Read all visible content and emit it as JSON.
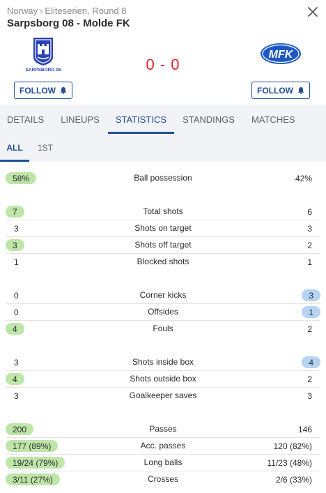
{
  "breadcrumb": {
    "country": "Norway",
    "separator": "›",
    "competition": "Eliteserien, Round 8"
  },
  "match": {
    "title": "Sarpsborg 08 - Molde FK",
    "score": "0 - 0"
  },
  "teams": {
    "home": {
      "logo_text": "SARPSBORG 08",
      "follow_label": "FOLLOW"
    },
    "away": {
      "logo_text": "MFK",
      "follow_label": "FOLLOW"
    }
  },
  "tabs": [
    "DETAILS",
    "LINEUPS",
    "STATISTICS",
    "STANDINGS",
    "MATCHES"
  ],
  "active_tab": "STATISTICS",
  "periods": [
    "ALL",
    "1ST"
  ],
  "active_period": "ALL",
  "colors": {
    "accent": "#1f4e98",
    "score": "#e8202a",
    "home_highlight": "#bfe6a9",
    "away_highlight": "#b6d4f2",
    "tab_bg": "#f2f3f6"
  },
  "icons": {
    "close": "close-icon",
    "bell": "bell-icon"
  },
  "stat_groups": [
    [
      {
        "label": "Ball possession",
        "home": "58%",
        "away": "42%",
        "highlight": "home"
      }
    ],
    [
      {
        "label": "Total shots",
        "home": "7",
        "away": "6",
        "highlight": "home"
      },
      {
        "label": "Shots on target",
        "home": "3",
        "away": "3",
        "highlight": "none"
      },
      {
        "label": "Shots off target",
        "home": "3",
        "away": "2",
        "highlight": "home"
      },
      {
        "label": "Blocked shots",
        "home": "1",
        "away": "1",
        "highlight": "none"
      }
    ],
    [
      {
        "label": "Corner kicks",
        "home": "0",
        "away": "3",
        "highlight": "away"
      },
      {
        "label": "Offsides",
        "home": "0",
        "away": "1",
        "highlight": "away"
      },
      {
        "label": "Fouls",
        "home": "4",
        "away": "2",
        "highlight": "home"
      }
    ],
    [
      {
        "label": "Shots inside box",
        "home": "3",
        "away": "4",
        "highlight": "away"
      },
      {
        "label": "Shots outside box",
        "home": "4",
        "away": "2",
        "highlight": "home"
      },
      {
        "label": "Goalkeeper saves",
        "home": "3",
        "away": "3",
        "highlight": "none"
      }
    ],
    [
      {
        "label": "Passes",
        "home": "200",
        "away": "146",
        "highlight": "home"
      },
      {
        "label": "Acc. passes",
        "home": "177 (89%)",
        "away": "120 (82%)",
        "highlight": "home"
      },
      {
        "label": "Long balls",
        "home": "19/24 (79%)",
        "away": "11/23 (48%)",
        "highlight": "home"
      },
      {
        "label": "Crosses",
        "home": "3/11 (27%)",
        "away": "2/6 (33%)",
        "highlight": "home"
      }
    ]
  ]
}
